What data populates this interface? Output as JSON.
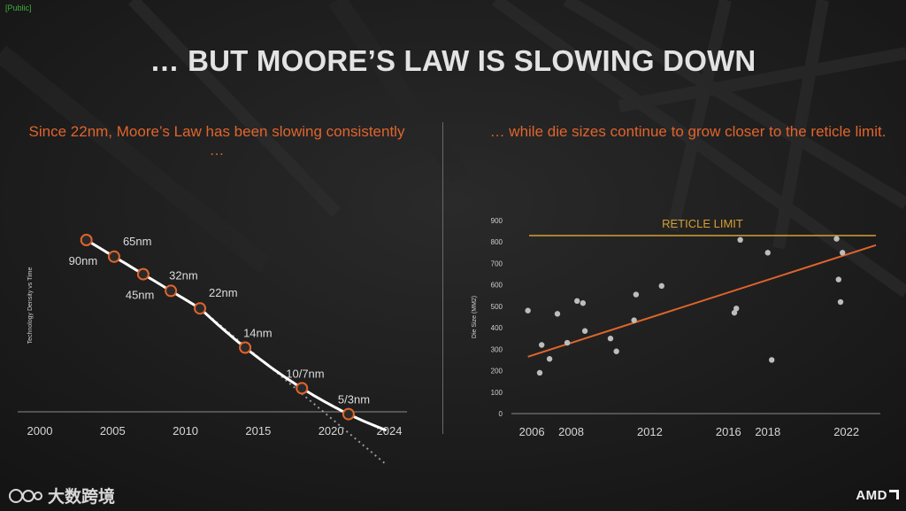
{
  "tag": "[Public]",
  "title": "… BUT MOORE’S LAW IS SLOWING DOWN",
  "brand_watermark": "大数跨境",
  "brand_logo": "AMD",
  "chart_data": [
    {
      "type": "line",
      "subtitle": "Since 22nm, Moore’s Law has been slowing consistently …",
      "ylabel": "Technology Density vs Time",
      "xlabel": "",
      "xlim": [
        2000,
        2024
      ],
      "x_ticks": [
        "2000",
        "2005",
        "2010",
        "2015",
        "2020",
        "2024"
      ],
      "y_ticks": [],
      "grid": false,
      "marker_color": "#e0642c",
      "trend_color": "#ffffff",
      "nodes": [
        {
          "label": "90nm",
          "year": 2003.2
        },
        {
          "label": "65nm",
          "year": 2005.1
        },
        {
          "label": "45nm",
          "year": 2007.1
        },
        {
          "label": "32nm",
          "year": 2009.0
        },
        {
          "label": "22nm",
          "year": 2011.0
        },
        {
          "label": "14nm",
          "year": 2014.1
        },
        {
          "label": "10/7nm",
          "year": 2018.0
        },
        {
          "label": "5/3nm",
          "year": 2021.2
        }
      ]
    },
    {
      "type": "scatter",
      "subtitle": "… while die sizes continue to grow closer to the reticle limit.",
      "ylabel": "Die Size (MM2)",
      "xlabel": "",
      "xlim": [
        2005.5,
        2023.5
      ],
      "ylim": [
        0,
        900
      ],
      "x_ticks": [
        2006,
        2008,
        2012,
        2016,
        2018,
        2022
      ],
      "y_ticks": [
        0,
        100,
        200,
        300,
        400,
        500,
        600,
        700,
        800,
        900
      ],
      "grid": false,
      "point_color": "#bdbdbd",
      "reticle_limit": {
        "label": "RETICLE LIMIT",
        "value": 830,
        "color": "#d4a032"
      },
      "trend": {
        "from": [
          2005.8,
          265
        ],
        "to": [
          2023.5,
          785
        ],
        "color": "#e0642c"
      },
      "points": [
        [
          2005.8,
          480
        ],
        [
          2006.4,
          190
        ],
        [
          2006.5,
          320
        ],
        [
          2006.9,
          255
        ],
        [
          2007.3,
          465
        ],
        [
          2007.8,
          330
        ],
        [
          2008.3,
          525
        ],
        [
          2008.6,
          515
        ],
        [
          2008.7,
          385
        ],
        [
          2010.0,
          350
        ],
        [
          2010.3,
          290
        ],
        [
          2011.2,
          435
        ],
        [
          2011.3,
          555
        ],
        [
          2012.6,
          595
        ],
        [
          2016.3,
          470
        ],
        [
          2016.4,
          490
        ],
        [
          2016.6,
          810
        ],
        [
          2018.0,
          750
        ],
        [
          2018.2,
          250
        ],
        [
          2021.5,
          815
        ],
        [
          2021.6,
          625
        ],
        [
          2021.7,
          520
        ],
        [
          2021.8,
          750
        ]
      ]
    }
  ]
}
